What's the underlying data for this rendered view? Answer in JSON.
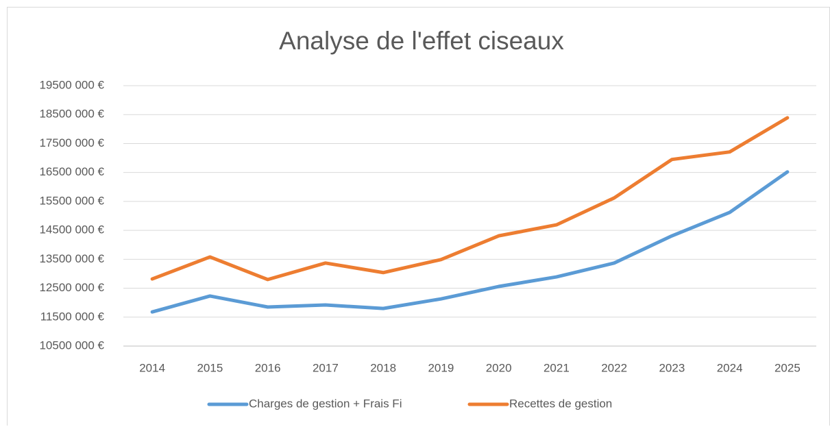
{
  "chart_data": {
    "type": "line",
    "title": "Analyse de l'effet ciseaux",
    "categories": [
      "2014",
      "2015",
      "2016",
      "2017",
      "2018",
      "2019",
      "2020",
      "2021",
      "2022",
      "2023",
      "2024",
      "2025"
    ],
    "series": [
      {
        "name": "Charges de gestion + Frais Fi",
        "color": "#5b9bd5",
        "values": [
          11680000,
          12230000,
          11850000,
          11920000,
          11800000,
          12130000,
          12560000,
          12890000,
          13370000,
          14310000,
          15120000,
          16520000
        ]
      },
      {
        "name": "Recettes de gestion",
        "color": "#ed7d31",
        "values": [
          12820000,
          13580000,
          12800000,
          13370000,
          13040000,
          13490000,
          14310000,
          14690000,
          15620000,
          16950000,
          17210000,
          18390000
        ]
      }
    ],
    "ylim": [
      10500000,
      19500000
    ],
    "yticks": [
      {
        "value": 10500000,
        "label": "10500 000 €"
      },
      {
        "value": 11500000,
        "label": "11500 000 €"
      },
      {
        "value": 12500000,
        "label": "12500 000 €"
      },
      {
        "value": 13500000,
        "label": "13500 000 €"
      },
      {
        "value": 14500000,
        "label": "14500 000 €"
      },
      {
        "value": 15500000,
        "label": "15500 000 €"
      },
      {
        "value": 16500000,
        "label": "16500 000 €"
      },
      {
        "value": 17500000,
        "label": "17500 000 €"
      },
      {
        "value": 18500000,
        "label": "18500 000 €"
      },
      {
        "value": 19500000,
        "label": "19500 000 €"
      }
    ],
    "grid": true,
    "legend": "bottom"
  }
}
